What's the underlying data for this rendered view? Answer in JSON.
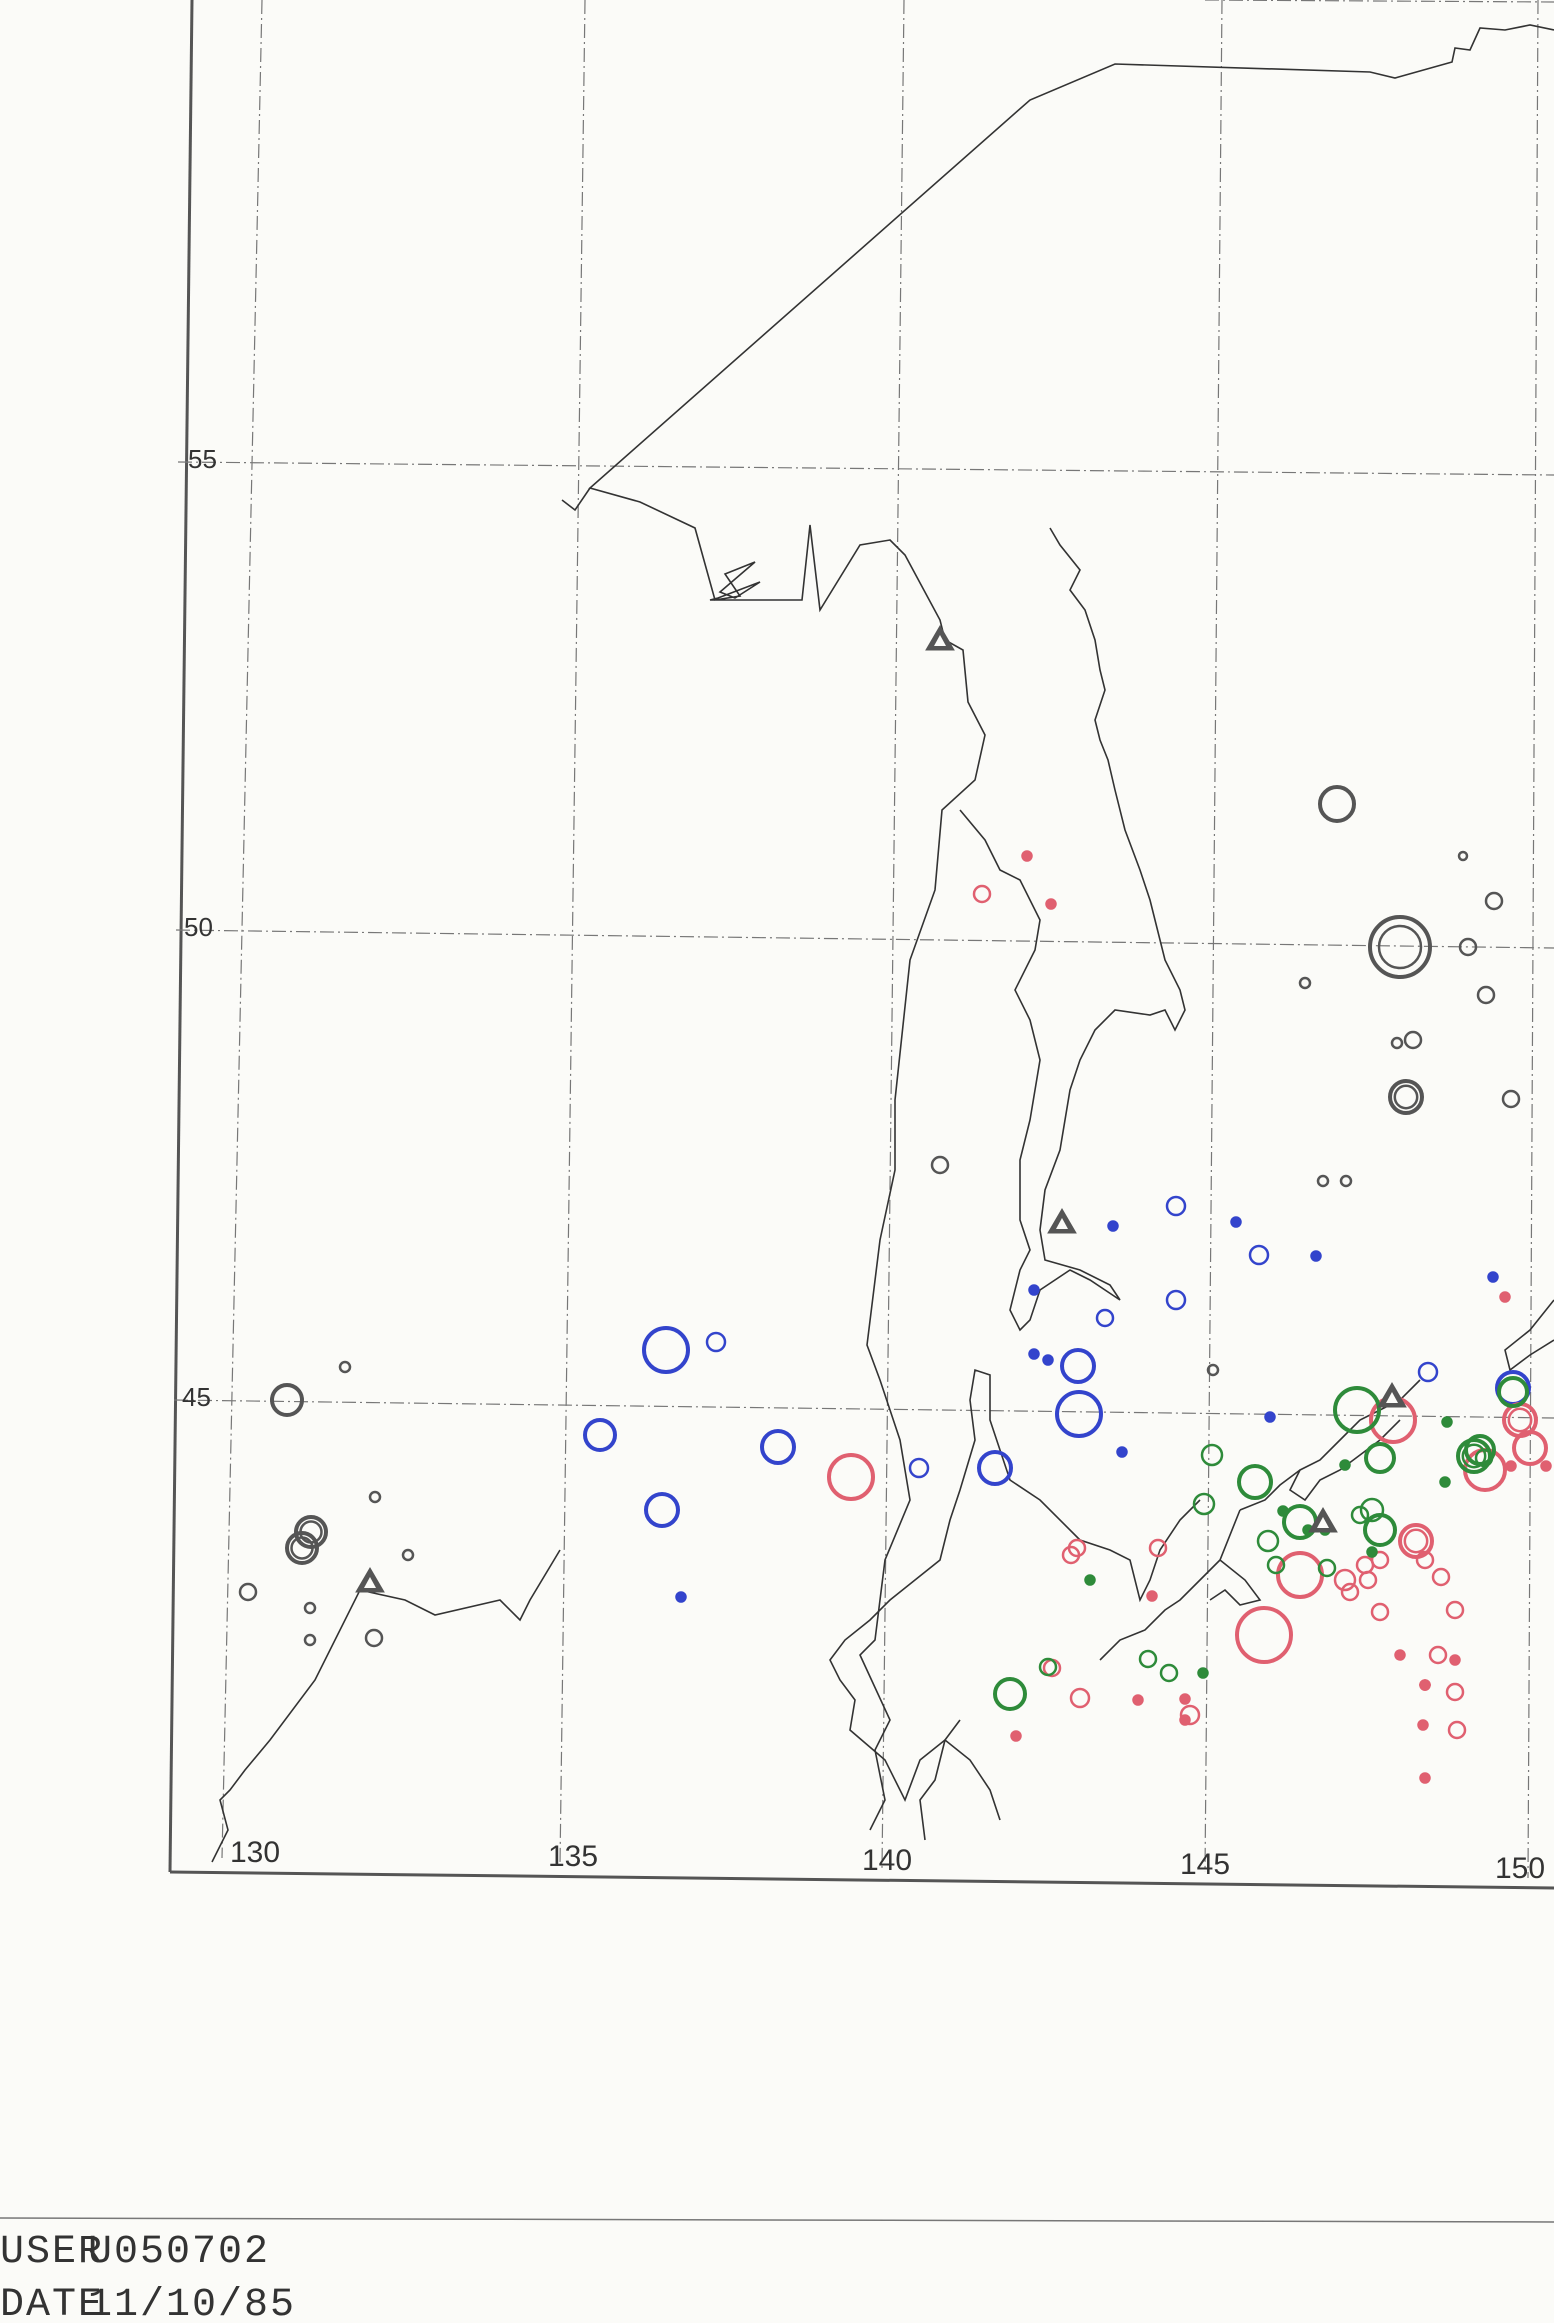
{
  "map": {
    "grid": {
      "lon_labels": [
        "130",
        "135",
        "140",
        "145",
        "150"
      ],
      "lat_labels": [
        "55",
        "50",
        "45"
      ]
    },
    "colors": {
      "grid": "#777777",
      "frame": "#555555",
      "coast": "#333333",
      "black_symbol": "#555555",
      "blue_symbol": "#3344cc",
      "red_symbol": "#e06070",
      "green_symbol": "#2e8b3a",
      "volcano": "#555555"
    },
    "legend_symbols": [
      "ring",
      "double-ring",
      "triangle-volcano"
    ]
  },
  "footer": {
    "user_label": "USER",
    "user_value": "U050702",
    "date_label": "DATE",
    "date_value": "11/10/85"
  }
}
